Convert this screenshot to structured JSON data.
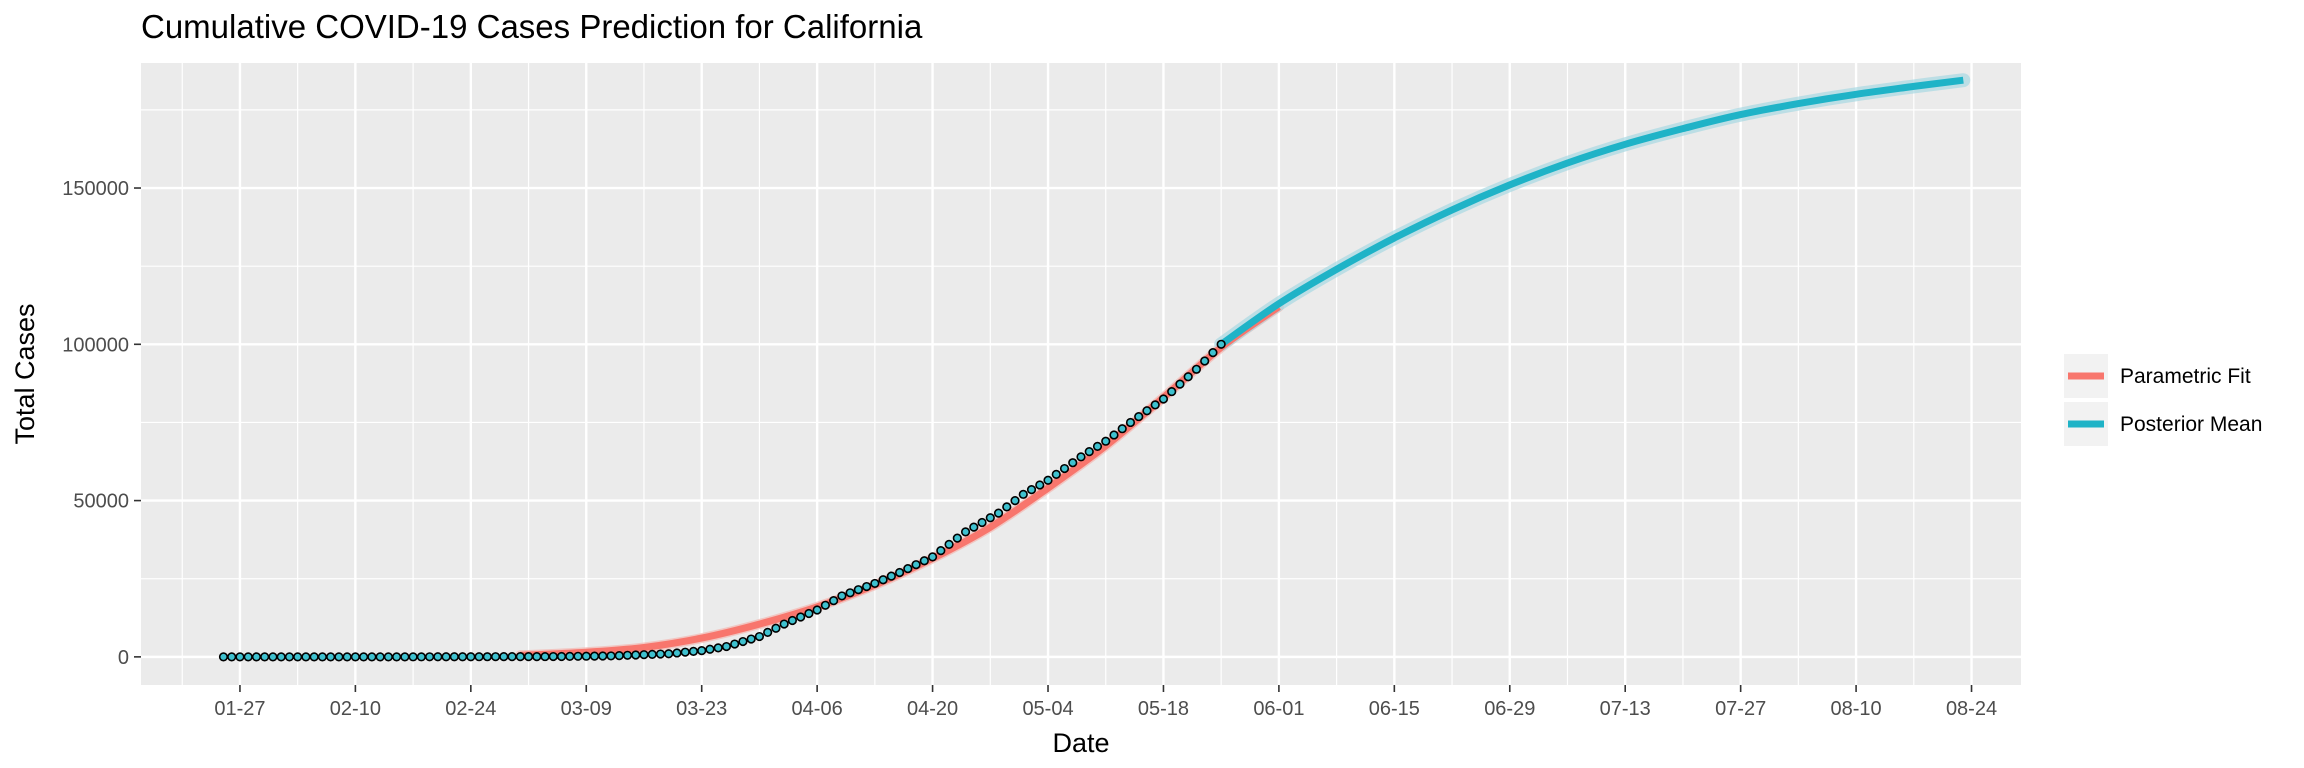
{
  "chart_data": {
    "type": "line",
    "title": "Cumulative COVID-19 Cases Prediction for California",
    "xlabel": "Date",
    "ylabel": "Total Cases",
    "xlim": [
      "2020-01-15",
      "2020-08-30"
    ],
    "ylim": [
      -9000,
      190000
    ],
    "x_ticks": [
      "01-27",
      "02-10",
      "02-24",
      "03-09",
      "03-23",
      "04-06",
      "04-20",
      "05-04",
      "05-18",
      "06-01",
      "06-15",
      "06-29",
      "07-13",
      "07-27",
      "08-10",
      "08-24"
    ],
    "x_tick_dates": [
      "2020-01-27",
      "2020-02-10",
      "2020-02-24",
      "2020-03-09",
      "2020-03-23",
      "2020-04-06",
      "2020-04-20",
      "2020-05-04",
      "2020-05-18",
      "2020-06-01",
      "2020-06-15",
      "2020-06-29",
      "2020-07-13",
      "2020-07-27",
      "2020-08-10",
      "2020-08-24"
    ],
    "y_ticks": [
      0,
      50000,
      100000,
      150000
    ],
    "y_tick_labels": [
      "0",
      "50000",
      "100000",
      "150000"
    ],
    "grid": true,
    "legend_position": "right",
    "series": [
      {
        "name": "Parametric Fit",
        "color": "#F8766D",
        "points": [
          [
            "2020-03-01",
            500
          ],
          [
            "2020-03-09",
            1500
          ],
          [
            "2020-03-16",
            3000
          ],
          [
            "2020-03-23",
            6000
          ],
          [
            "2020-03-30",
            10500
          ],
          [
            "2020-04-06",
            16000
          ],
          [
            "2020-04-13",
            23000
          ],
          [
            "2020-04-20",
            31500
          ],
          [
            "2020-04-27",
            41500
          ],
          [
            "2020-05-04",
            54000
          ],
          [
            "2020-05-11",
            67500
          ],
          [
            "2020-05-18",
            83000
          ],
          [
            "2020-05-25",
            99000
          ],
          [
            "2020-06-01",
            112000
          ]
        ]
      },
      {
        "name": "Posterior Mean",
        "color": "#1FB3C7",
        "points": [
          [
            "2020-05-25",
            100000
          ],
          [
            "2020-06-01",
            113000
          ],
          [
            "2020-06-08",
            124000
          ],
          [
            "2020-06-15",
            134000
          ],
          [
            "2020-06-22",
            143000
          ],
          [
            "2020-06-29",
            151000
          ],
          [
            "2020-07-06",
            158000
          ],
          [
            "2020-07-13",
            164000
          ],
          [
            "2020-07-20",
            169000
          ],
          [
            "2020-07-27",
            173500
          ],
          [
            "2020-08-03",
            177000
          ],
          [
            "2020-08-10",
            180000
          ],
          [
            "2020-08-17",
            182500
          ],
          [
            "2020-08-23",
            184500
          ]
        ]
      }
    ],
    "observed": {
      "color": "#3FC1CF",
      "points": [
        [
          "2020-01-25",
          0
        ],
        [
          "2020-02-15",
          0
        ],
        [
          "2020-03-05",
          100
        ],
        [
          "2020-03-12",
          300
        ],
        [
          "2020-03-19",
          1000
        ],
        [
          "2020-03-23",
          2000
        ],
        [
          "2020-03-26",
          3300
        ],
        [
          "2020-03-30",
          6500
        ],
        [
          "2020-04-02",
          10500
        ],
        [
          "2020-04-06",
          15000
        ],
        [
          "2020-04-09",
          19500
        ],
        [
          "2020-04-13",
          23500
        ],
        [
          "2020-04-16",
          27000
        ],
        [
          "2020-04-20",
          32000
        ],
        [
          "2020-04-24",
          40000
        ],
        [
          "2020-04-28",
          46000
        ],
        [
          "2020-05-01",
          52000
        ],
        [
          "2020-05-04",
          56500
        ],
        [
          "2020-05-08",
          64000
        ],
        [
          "2020-05-11",
          69000
        ],
        [
          "2020-05-14",
          75000
        ],
        [
          "2020-05-18",
          82500
        ],
        [
          "2020-05-22",
          92000
        ],
        [
          "2020-05-25",
          100000
        ]
      ]
    }
  }
}
